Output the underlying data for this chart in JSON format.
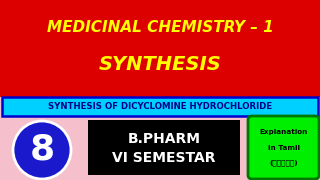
{
  "bg_color": "#f5bfcc",
  "top_rect_color": "#dd0000",
  "top_text_line1": "MEDICINAL CHEMISTRY – 1",
  "top_text_line2": "SYNTHESIS",
  "top_text_color": "#ffff00",
  "banner_bg": "#00d0ff",
  "banner_border": "#0000cc",
  "banner_text": "SYNTHESIS OF DICYCLOMINE HYDROCHLORIDE",
  "banner_text_color": "#00008b",
  "circle_color": "#1a1acc",
  "circle_text": "8",
  "circle_text_color": "#ffffff",
  "black_box_color": "#000000",
  "black_box_text1": "B.PHARM",
  "black_box_text2": "VI SEMESTAR",
  "black_box_text_color": "#ffffff",
  "green_box_color": "#00ee00",
  "green_box_text1": "Explanation",
  "green_box_text2": "in Tamil",
  "green_box_text3": "(தமிழ்)",
  "green_box_text_color": "#000000",
  "fig_w": 3.2,
  "fig_h": 1.8,
  "dpi": 100
}
